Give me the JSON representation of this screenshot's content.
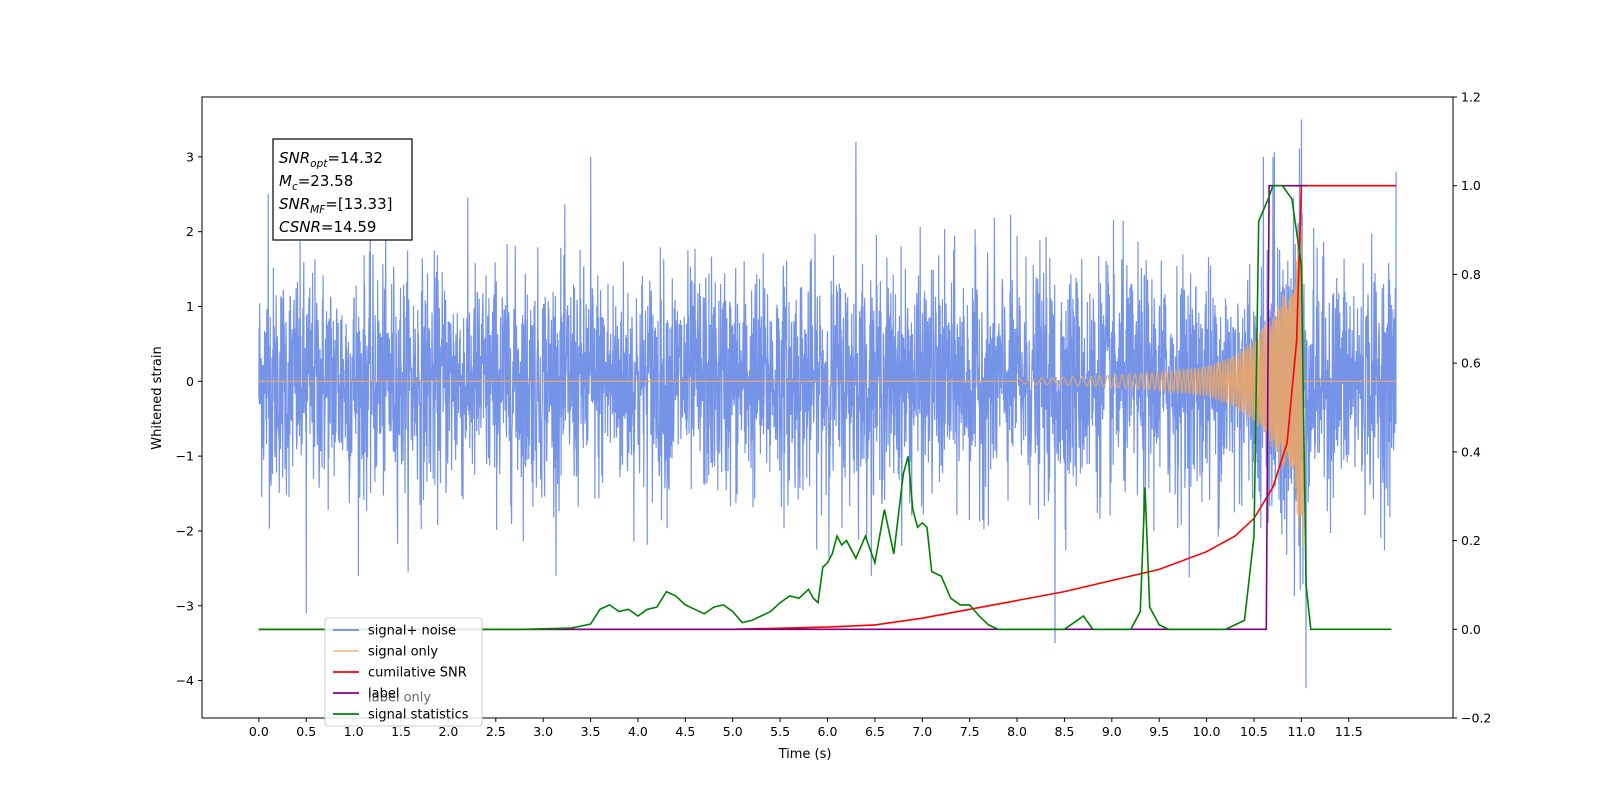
{
  "chart_data": {
    "type": "line",
    "xlabel": "Time (s)",
    "ylabel": "Whitened strain",
    "xlim": [
      -0.6,
      12.6
    ],
    "ylim": [
      -4.5,
      3.8
    ],
    "ylim_right": [
      -0.2,
      1.2
    ],
    "x_ticks": [
      "0.0",
      "0.5",
      "1.0",
      "1.5",
      "2.0",
      "2.5",
      "3.0",
      "3.5",
      "4.0",
      "4.5",
      "5.0",
      "5.5",
      "6.0",
      "6.5",
      "7.0",
      "7.5",
      "8.0",
      "8.5",
      "9.0",
      "9.5",
      "10.0",
      "10.5",
      "11.0",
      "11.5"
    ],
    "y_ticks": [
      "3",
      "2",
      "1",
      "0",
      "−1",
      "−2",
      "−3",
      "−4"
    ],
    "y_right_ticks": [
      "1.2",
      "1.0",
      "0.8",
      "0.6",
      "0.4",
      "0.2",
      "0.0",
      "−0.2"
    ],
    "grid": false,
    "legend_position": "lower-left",
    "annotation": [
      {
        "main": "SNR",
        "sub": "opt",
        "rest": "=14.32"
      },
      {
        "main": "M",
        "sub": "c",
        "rest": "=23.58"
      },
      {
        "main": "SNR",
        "sub": "MF",
        "rest": "=[13.33]"
      },
      {
        "main": "CSNR",
        "sub": "",
        "rest": "=14.59"
      }
    ],
    "series": [
      {
        "name": "signal+ noise",
        "axis": "left",
        "color": "#6f8ee6",
        "description_range": "noise approx ±1.5 with peaks to ±3",
        "x_range": [
          0,
          12.0
        ],
        "peaks": [
          [
            0.1,
            2.5
          ],
          [
            0.5,
            -3.1
          ],
          [
            3.5,
            3.0
          ],
          [
            6.3,
            3.2
          ],
          [
            8.4,
            -3.5
          ],
          [
            10.6,
            3.0
          ],
          [
            10.7,
            3.0
          ],
          [
            11.0,
            3.5
          ],
          [
            11.05,
            -4.1
          ],
          [
            12.0,
            2.8
          ]
        ]
      },
      {
        "name": "signal only",
        "axis": "left",
        "color": "#f0a860",
        "chirp_start": 8.0,
        "merger": 11.0,
        "end_amplitude_x": [
          8.0,
          9.0,
          9.5,
          10.0,
          10.3,
          10.5,
          10.7,
          10.9,
          11.0
        ],
        "end_amplitude_y": [
          0.03,
          0.08,
          0.12,
          0.2,
          0.35,
          0.55,
          0.9,
          1.4,
          2.2
        ]
      },
      {
        "name": "cumilative SNR",
        "axis": "right",
        "color": "#ff0000",
        "x": [
          0,
          5.0,
          6.0,
          6.5,
          7.0,
          7.5,
          8.0,
          8.5,
          9.0,
          9.5,
          10.0,
          10.3,
          10.5,
          10.7,
          10.85,
          10.95,
          11.0,
          11.1,
          12.0
        ],
        "y": [
          0.0,
          0.0,
          0.005,
          0.01,
          0.025,
          0.045,
          0.065,
          0.085,
          0.11,
          0.135,
          0.175,
          0.21,
          0.25,
          0.32,
          0.42,
          0.65,
          1.0,
          1.0,
          1.0
        ]
      },
      {
        "name": "label",
        "axis": "right",
        "color": "#800080",
        "x": [
          0,
          10.63,
          10.66,
          11.0,
          11.02,
          11.05
        ],
        "y": [
          0,
          0,
          1.0,
          1.0,
          1.0,
          1.0
        ]
      },
      {
        "name": "signal statistics",
        "axis": "right",
        "color": "#008000",
        "x": [
          0,
          2.8,
          3.3,
          3.5,
          3.6,
          3.7,
          3.8,
          3.9,
          4.0,
          4.1,
          4.2,
          4.3,
          4.4,
          4.5,
          4.6,
          4.7,
          4.8,
          4.9,
          5.0,
          5.1,
          5.2,
          5.3,
          5.4,
          5.5,
          5.6,
          5.7,
          5.8,
          5.85,
          5.9,
          5.95,
          6.0,
          6.05,
          6.1,
          6.15,
          6.2,
          6.3,
          6.4,
          6.5,
          6.6,
          6.7,
          6.8,
          6.85,
          6.9,
          6.95,
          7.0,
          7.05,
          7.1,
          7.2,
          7.3,
          7.4,
          7.5,
          7.6,
          7.7,
          7.8,
          8.0,
          8.5,
          8.7,
          8.8,
          9.2,
          9.3,
          9.35,
          9.4,
          9.5,
          9.6,
          10.2,
          10.3,
          10.4,
          10.5,
          10.55,
          10.65,
          10.7,
          10.8,
          10.9,
          11.0,
          11.05,
          11.1,
          11.95
        ],
        "y": [
          0,
          0.0,
          0.003,
          0.012,
          0.045,
          0.055,
          0.04,
          0.045,
          0.03,
          0.045,
          0.05,
          0.085,
          0.075,
          0.055,
          0.045,
          0.035,
          0.05,
          0.055,
          0.04,
          0.015,
          0.02,
          0.03,
          0.04,
          0.06,
          0.075,
          0.07,
          0.09,
          0.07,
          0.06,
          0.14,
          0.15,
          0.17,
          0.21,
          0.19,
          0.2,
          0.16,
          0.21,
          0.15,
          0.27,
          0.17,
          0.35,
          0.39,
          0.27,
          0.23,
          0.24,
          0.23,
          0.13,
          0.12,
          0.07,
          0.055,
          0.055,
          0.03,
          0.01,
          0.0,
          0.0,
          0.0,
          0.03,
          0.0,
          0.0,
          0.04,
          0.32,
          0.05,
          0.01,
          0.0,
          0.0,
          0.01,
          0.02,
          0.21,
          0.92,
          0.97,
          1.0,
          1.0,
          0.97,
          0.82,
          0.1,
          0.0,
          0.0
        ]
      }
    ],
    "legend": [
      "signal+ noise",
      "signal only",
      "cumilative SNR",
      "label",
      "signal statistics"
    ],
    "legend_overlap_text": "label only"
  }
}
